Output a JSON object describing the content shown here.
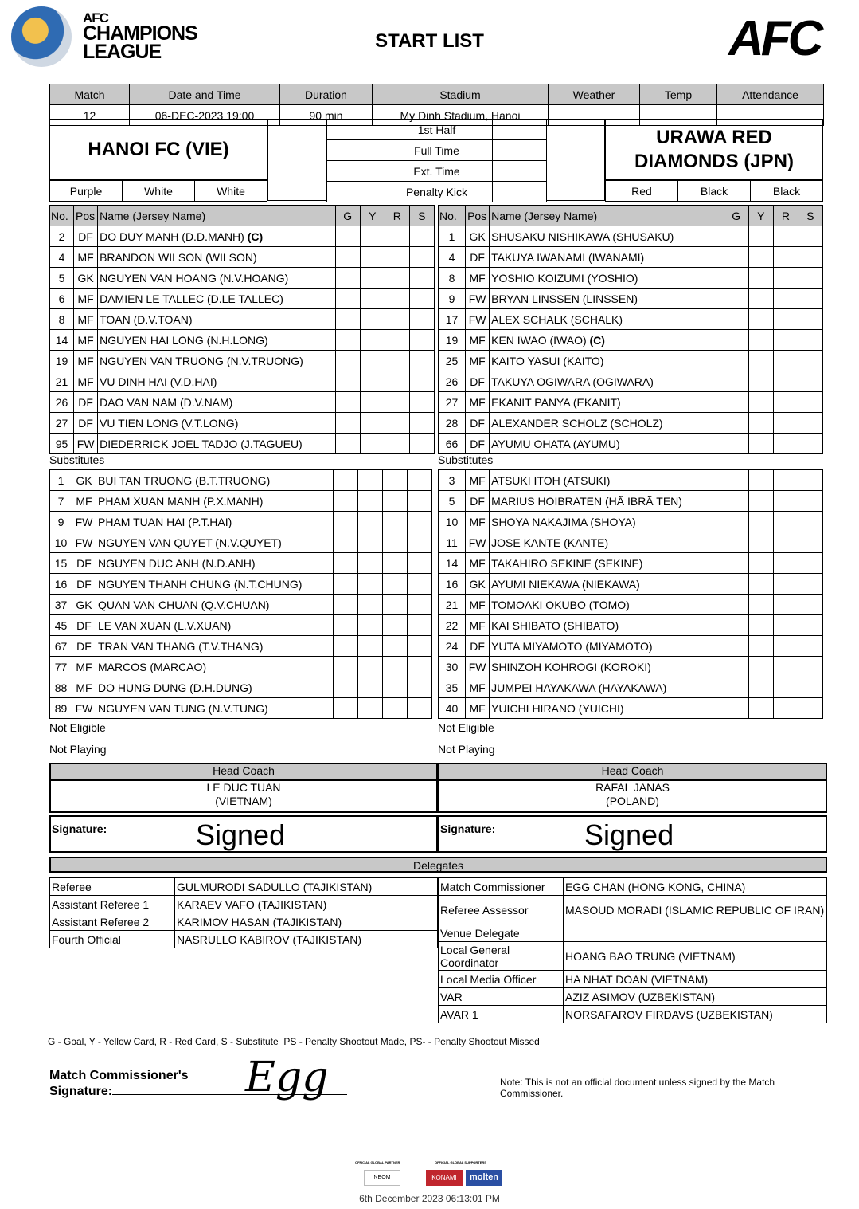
{
  "header": {
    "logo_lines": [
      "AFC",
      "CHAMPIONS",
      "LEAGUE"
    ],
    "title": "START LIST",
    "afc_logo": "AFC"
  },
  "match_info": {
    "headers": [
      "Match",
      "Date and Time",
      "Duration",
      "Stadium",
      "Weather",
      "Temp",
      "Attendance"
    ],
    "values": [
      "12",
      "06-DEC-2023 19:00",
      "90 min",
      "My Dinh Stadium, Hanoi",
      "",
      "",
      ""
    ]
  },
  "home": {
    "name": "HANOI FC (VIE)",
    "colors": [
      "Purple",
      "White",
      "White"
    ]
  },
  "away": {
    "name": "URAWA RED DIAMONDS (JPN)",
    "colors": [
      "Red",
      "Black",
      "Black"
    ]
  },
  "periods": [
    "1st Half",
    "Full Time",
    "Ext. Time",
    "Penalty Kick"
  ],
  "lineup_headers": [
    "No.",
    "Pos",
    "Name (Jersey Name)",
    "G",
    "Y",
    "R",
    "S"
  ],
  "home_starters": [
    [
      "2",
      "DF",
      "DO DUY MANH (D.D.MANH)",
      "(C)"
    ],
    [
      "4",
      "MF",
      "BRANDON WILSON (WILSON)",
      ""
    ],
    [
      "5",
      "GK",
      "NGUYEN VAN HOANG (N.V.HOANG)",
      ""
    ],
    [
      "6",
      "MF",
      "DAMIEN LE TALLEC (D.LE TALLEC)",
      ""
    ],
    [
      "8",
      "MF",
      "TOAN (D.V.TOAN)",
      ""
    ],
    [
      "14",
      "MF",
      "NGUYEN HAI LONG (N.H.LONG)",
      ""
    ],
    [
      "19",
      "MF",
      "NGUYEN VAN TRUONG (N.V.TRUONG)",
      ""
    ],
    [
      "21",
      "MF",
      "VU DINH HAI (V.D.HAI)",
      ""
    ],
    [
      "26",
      "DF",
      "DAO VAN NAM (D.V.NAM)",
      ""
    ],
    [
      "27",
      "DF",
      "VU TIEN LONG (V.T.LONG)",
      ""
    ],
    [
      "95",
      "FW",
      "DIEDERRICK JOEL TADJO (J.TAGUEU)",
      ""
    ]
  ],
  "away_starters": [
    [
      "1",
      "GK",
      "SHUSAKU NISHIKAWA (SHUSAKU)",
      ""
    ],
    [
      "4",
      "DF",
      "TAKUYA IWANAMI (IWANAMI)",
      ""
    ],
    [
      "8",
      "MF",
      "YOSHIO KOIZUMI (YOSHIO)",
      ""
    ],
    [
      "9",
      "FW",
      "BRYAN LINSSEN (LINSSEN)",
      ""
    ],
    [
      "17",
      "FW",
      "ALEX SCHALK (SCHALK)",
      ""
    ],
    [
      "19",
      "MF",
      "KEN IWAO (IWAO)",
      "(C)"
    ],
    [
      "25",
      "MF",
      "KAITO YASUI (KAITO)",
      ""
    ],
    [
      "26",
      "DF",
      "TAKUYA OGIWARA (OGIWARA)",
      ""
    ],
    [
      "27",
      "MF",
      "EKANIT PANYA (EKANIT)",
      ""
    ],
    [
      "28",
      "DF",
      "ALEXANDER SCHOLZ (SCHOLZ)",
      ""
    ],
    [
      "66",
      "DF",
      "AYUMU OHATA (AYUMU)",
      ""
    ]
  ],
  "substitutes_label": "Substitutes",
  "home_subs": [
    [
      "1",
      "GK",
      "BUI TAN TRUONG (B.T.TRUONG)"
    ],
    [
      "7",
      "MF",
      "PHAM XUAN MANH (P.X.MANH)"
    ],
    [
      "9",
      "FW",
      "PHAM TUAN HAI (P.T.HAI)"
    ],
    [
      "10",
      "FW",
      "NGUYEN VAN QUYET (N.V.QUYET)"
    ],
    [
      "15",
      "DF",
      "NGUYEN DUC ANH (N.D.ANH)"
    ],
    [
      "16",
      "DF",
      "NGUYEN THANH CHUNG (N.T.CHUNG)"
    ],
    [
      "37",
      "GK",
      "QUAN VAN CHUAN (Q.V.CHUAN)"
    ],
    [
      "45",
      "DF",
      "LE VAN XUAN (L.V.XUAN)"
    ],
    [
      "67",
      "DF",
      "TRAN VAN THANG (T.V.THANG)"
    ],
    [
      "77",
      "MF",
      "MARCOS (MARCAO)"
    ],
    [
      "88",
      "MF",
      "DO HUNG DUNG (D.H.DUNG)"
    ],
    [
      "89",
      "FW",
      "NGUYEN VAN TUNG (N.V.TUNG)"
    ]
  ],
  "away_subs": [
    [
      "3",
      "MF",
      "ATSUKI ITOH (ATSUKI)"
    ],
    [
      "5",
      "DF",
      "MARIUS HOIBRATEN (HÃ  IBRÃ  TEN)"
    ],
    [
      "10",
      "MF",
      "SHOYA NAKAJIMA (SHOYA)"
    ],
    [
      "11",
      "FW",
      "JOSE KANTE (KANTE)"
    ],
    [
      "14",
      "MF",
      "TAKAHIRO SEKINE (SEKINE)"
    ],
    [
      "16",
      "GK",
      "AYUMI NIEKAWA (NIEKAWA)"
    ],
    [
      "21",
      "MF",
      "TOMOAKI OKUBO (TOMO)"
    ],
    [
      "22",
      "MF",
      "KAI SHIBATO (SHIBATO)"
    ],
    [
      "24",
      "DF",
      "YUTA MIYAMOTO (MIYAMOTO)"
    ],
    [
      "30",
      "FW",
      "SHINZOH KOHROGI (KOROKI)"
    ],
    [
      "35",
      "MF",
      "JUMPEI HAYAKAWA (HAYAKAWA)"
    ],
    [
      "40",
      "MF",
      "YUICHI HIRANO (YUICHI)"
    ]
  ],
  "not_eligible_label": "Not Eligible",
  "not_playing_label": "Not Playing",
  "coach": {
    "label": "Head Coach",
    "home": [
      "LE DUC TUAN",
      "(VIETNAM)"
    ],
    "away": [
      "RAFAL JANAS",
      "(POLAND)"
    ]
  },
  "signature": {
    "label": "Signature:",
    "home": "Signed",
    "away": "Signed"
  },
  "delegates": {
    "title": "Delegates",
    "left": [
      [
        "Referee",
        "GULMURODI SADULLO (TAJIKISTAN)"
      ],
      [
        "Assistant Referee 1",
        "KARAEV VAFO (TAJIKISTAN)"
      ],
      [
        "Assistant Referee 2",
        "KARIMOV HASAN (TAJIKISTAN)"
      ],
      [
        "Fourth Official",
        "NASRULLO KABIROV (TAJIKISTAN)"
      ]
    ],
    "right": [
      [
        "Match Commissioner",
        "EGG CHAN (HONG KONG, CHINA)"
      ],
      [
        "Referee Assessor",
        "MASOUD MORADI (ISLAMIC REPUBLIC OF IRAN)"
      ],
      [
        "Venue Delegate",
        ""
      ],
      [
        "Local General Coordinator",
        "HOANG BAO TRUNG (VIETNAM)"
      ],
      [
        "Local Media Officer",
        "HA NHAT DOAN (VIETNAM)"
      ],
      [
        "VAR",
        "AZIZ ASIMOV (UZBEKISTAN)"
      ],
      [
        "AVAR 1",
        "NORSAFAROV FIRDAVS (UZBEKISTAN)"
      ]
    ]
  },
  "legend": "G - Goal, Y - Yellow Card, R - Red Card, S - Substitute  PS - Penalty Shootout Made, PS- - Penalty Shootout Missed",
  "commissioner": {
    "label1": "Match Commissioner's",
    "label2": "Signature:",
    "signature": "Egg"
  },
  "note": "Note: This is not an official document unless signed by the Match Commissioner.",
  "sponsors": {
    "partner_label": "OFFICIAL GLOBAL PARTNER",
    "supporters_label": "OFFICIAL GLOBAL SUPPORTERS",
    "names": [
      "NEOM",
      "KONAMI",
      "molten"
    ]
  },
  "timestamp": "6th December 2023 06:13:01 PM"
}
